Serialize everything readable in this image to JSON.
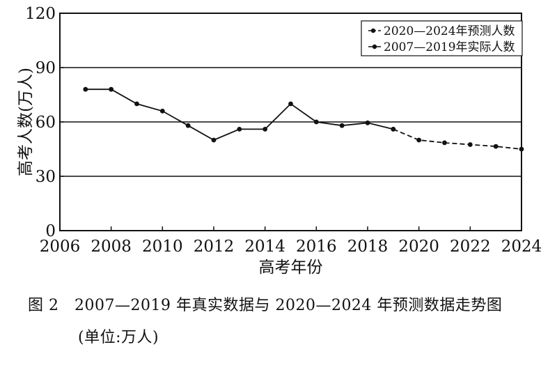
{
  "chart_data": {
    "type": "line",
    "xlabel": "高考年份",
    "ylabel": "高考人数(万人)",
    "xlim": [
      2006,
      2024
    ],
    "ylim": [
      0,
      120
    ],
    "x_ticks": [
      2006,
      2008,
      2010,
      2012,
      2014,
      2016,
      2018,
      2020,
      2022,
      2024
    ],
    "y_ticks": [
      0,
      30,
      60,
      90,
      120
    ],
    "grid": "horizontal",
    "legend_position": "top-right",
    "series": [
      {
        "name": "2020—2024年预测人数",
        "style": "dashed",
        "x": [
          2019,
          2020,
          2021,
          2022,
          2023,
          2024
        ],
        "y": [
          56,
          50,
          48.5,
          47.5,
          46.5,
          45
        ]
      },
      {
        "name": "2007—2019年实际人数",
        "style": "solid",
        "x": [
          2007,
          2008,
          2009,
          2010,
          2011,
          2012,
          2013,
          2014,
          2015,
          2016,
          2017,
          2018,
          2019
        ],
        "y": [
          78,
          78,
          70,
          66,
          58,
          50,
          56,
          56,
          70,
          60,
          58,
          59.5,
          56
        ]
      }
    ]
  },
  "caption": {
    "line1": "图 2　2007—2019 年真实数据与 2020—2024 年预测数据走势图",
    "line2": "(单位:万人)"
  }
}
